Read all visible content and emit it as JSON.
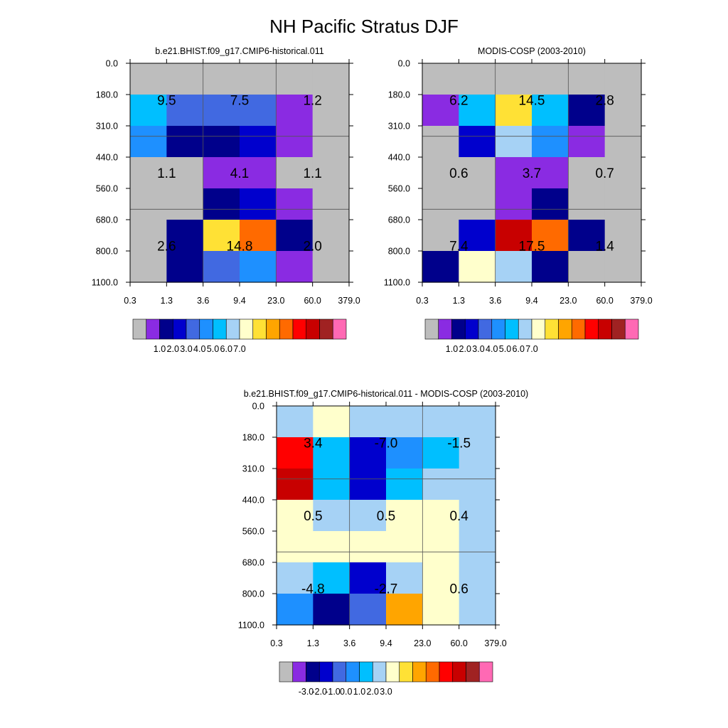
{
  "figure_title": "NH Pacific Stratus DJF",
  "palette": {
    "missing": "#bdbdbd",
    "colors": [
      "#bdbdbd",
      "#8a2be2",
      "#00008b",
      "#0000cd",
      "#4169e1",
      "#1e90ff",
      "#00bfff",
      "#a6d2f5",
      "#ffffcc",
      "#ffe135",
      "#ffa500",
      "#ff6a00",
      "#ff0000",
      "#c80000",
      "#a02222",
      "#ff69b4"
    ]
  },
  "chart_data": [
    {
      "type": "heatmap",
      "title": "b.e21.BHIST.f09_g17.CMIP6-historical.011",
      "x_tick_labels": [
        "0.3",
        "1.3",
        "3.6",
        "9.4",
        "23.0",
        "60.0",
        "379.0"
      ],
      "y_tick_labels": [
        "0.0",
        "180.0",
        "310.0",
        "440.0",
        "560.0",
        "680.0",
        "800.0",
        "1100.0"
      ],
      "x_bins": 6,
      "y_bins": 7,
      "cell_color_index": [
        [
          0,
          0,
          0,
          0,
          0,
          0
        ],
        [
          6,
          4,
          4,
          4,
          1,
          0
        ],
        [
          5,
          2,
          2,
          3,
          1,
          0
        ],
        [
          0,
          0,
          1,
          1,
          0,
          0
        ],
        [
          0,
          0,
          2,
          3,
          1,
          0
        ],
        [
          0,
          2,
          9,
          11,
          2,
          0
        ],
        [
          0,
          2,
          4,
          5,
          1,
          0
        ]
      ],
      "block_values": [
        {
          "row": 0,
          "col": 0,
          "label": "9.5"
        },
        {
          "row": 0,
          "col": 1,
          "label": "7.5"
        },
        {
          "row": 0,
          "col": 2,
          "label": "1.2"
        },
        {
          "row": 1,
          "col": 0,
          "label": "1.1"
        },
        {
          "row": 1,
          "col": 1,
          "label": "4.1"
        },
        {
          "row": 1,
          "col": 2,
          "label": "1.1"
        },
        {
          "row": 2,
          "col": 0,
          "label": "2.6"
        },
        {
          "row": 2,
          "col": 1,
          "label": "14.8"
        },
        {
          "row": 2,
          "col": 2,
          "label": "2.0"
        }
      ],
      "colorbar": {
        "labels": [
          "1.0",
          "2.0",
          "3.0",
          "4.0",
          "5.0",
          "6.0",
          "7.0"
        ]
      }
    },
    {
      "type": "heatmap",
      "title": "MODIS-COSP (2003-2010)",
      "x_tick_labels": [
        "0.3",
        "1.3",
        "3.6",
        "9.4",
        "23.0",
        "60.0",
        "379.0"
      ],
      "y_tick_labels": [
        "0.0",
        "180.0",
        "310.0",
        "440.0",
        "560.0",
        "680.0",
        "800.0",
        "1100.0"
      ],
      "x_bins": 6,
      "y_bins": 7,
      "cell_color_index": [
        [
          0,
          0,
          0,
          0,
          0,
          0
        ],
        [
          1,
          6,
          9,
          6,
          2,
          0
        ],
        [
          0,
          3,
          7,
          5,
          1,
          0
        ],
        [
          0,
          0,
          1,
          1,
          0,
          0
        ],
        [
          0,
          0,
          1,
          2,
          0,
          0
        ],
        [
          0,
          3,
          13,
          11,
          2,
          0
        ],
        [
          2,
          8,
          7,
          2,
          0,
          0
        ]
      ],
      "block_values": [
        {
          "row": 0,
          "col": 0,
          "label": "6.2"
        },
        {
          "row": 0,
          "col": 1,
          "label": "14.5"
        },
        {
          "row": 0,
          "col": 2,
          "label": "2.8"
        },
        {
          "row": 1,
          "col": 0,
          "label": "0.6"
        },
        {
          "row": 1,
          "col": 1,
          "label": "3.7"
        },
        {
          "row": 1,
          "col": 2,
          "label": "0.7"
        },
        {
          "row": 2,
          "col": 0,
          "label": "7.4"
        },
        {
          "row": 2,
          "col": 1,
          "label": "17.5"
        },
        {
          "row": 2,
          "col": 2,
          "label": "1.4"
        }
      ],
      "colorbar": {
        "labels": [
          "1.0",
          "2.0",
          "3.0",
          "4.0",
          "5.0",
          "6.0",
          "7.0"
        ]
      }
    },
    {
      "type": "heatmap",
      "title": "b.e21.BHIST.f09_g17.CMIP6-historical.011 - MODIS-COSP (2003-2010)",
      "x_tick_labels": [
        "0.3",
        "1.3",
        "3.6",
        "9.4",
        "23.0",
        "60.0",
        "379.0"
      ],
      "y_tick_labels": [
        "0.0",
        "180.0",
        "310.0",
        "440.0",
        "560.0",
        "680.0",
        "800.0",
        "1100.0"
      ],
      "x_bins": 6,
      "y_bins": 7,
      "cell_color_index": [
        [
          7,
          8,
          7,
          7,
          7,
          7
        ],
        [
          12,
          6,
          3,
          5,
          6,
          7
        ],
        [
          13,
          6,
          3,
          6,
          7,
          7
        ],
        [
          8,
          7,
          7,
          8,
          8,
          7
        ],
        [
          8,
          8,
          8,
          8,
          8,
          7
        ],
        [
          7,
          6,
          3,
          7,
          8,
          7
        ],
        [
          5,
          2,
          4,
          10,
          8,
          7
        ]
      ],
      "block_values": [
        {
          "row": 0,
          "col": 0,
          "label": "3.4"
        },
        {
          "row": 0,
          "col": 1,
          "label": "-7.0"
        },
        {
          "row": 0,
          "col": 2,
          "label": "-1.5"
        },
        {
          "row": 1,
          "col": 0,
          "label": "0.5"
        },
        {
          "row": 1,
          "col": 1,
          "label": "0.5"
        },
        {
          "row": 1,
          "col": 2,
          "label": "0.4"
        },
        {
          "row": 2,
          "col": 0,
          "label": "-4.8"
        },
        {
          "row": 2,
          "col": 1,
          "label": "-2.7"
        },
        {
          "row": 2,
          "col": 2,
          "label": "0.6"
        }
      ],
      "colorbar": {
        "labels": [
          "-3.0",
          "-2.0",
          "-1.0",
          "0.0",
          "1.0",
          "2.0",
          "3.0"
        ]
      }
    }
  ]
}
